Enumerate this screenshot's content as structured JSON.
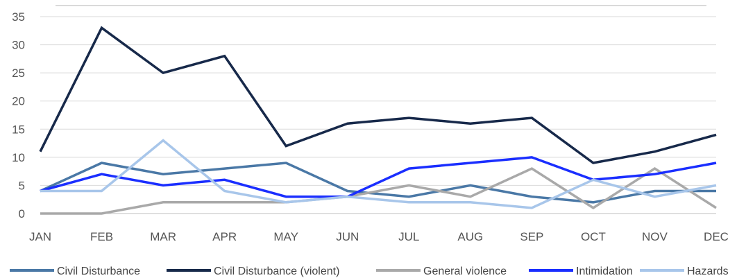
{
  "chart_data": {
    "type": "line",
    "categories": [
      "JAN",
      "FEB",
      "MAR",
      "APR",
      "MAY",
      "JUN",
      "JUL",
      "AUG",
      "SEP",
      "OCT",
      "NOV",
      "DEC"
    ],
    "ylim": [
      0,
      35
    ],
    "yticks": [
      0,
      5,
      10,
      15,
      20,
      25,
      30,
      35
    ],
    "grid": true,
    "legend_position": "bottom",
    "series": [
      {
        "name": "Civil Disturbance",
        "color": "#4a78a6",
        "values": [
          4,
          9,
          7,
          8,
          9,
          4,
          3,
          5,
          3,
          2,
          4,
          4
        ]
      },
      {
        "name": "Civil Disturbance (violent)",
        "color": "#17294a",
        "values": [
          11,
          33,
          25,
          28,
          12,
          16,
          17,
          16,
          17,
          9,
          11,
          14
        ]
      },
      {
        "name": "General violence",
        "color": "#a9a9a9",
        "values": [
          0,
          0,
          2,
          2,
          2,
          3,
          5,
          3,
          8,
          1,
          8,
          1
        ]
      },
      {
        "name": "Intimidation",
        "color": "#1a2eff",
        "values": [
          4,
          7,
          5,
          6,
          3,
          3,
          8,
          9,
          10,
          6,
          7,
          9
        ]
      },
      {
        "name": "Hazards",
        "color": "#a8c6ea",
        "values": [
          4,
          4,
          13,
          4,
          2,
          3,
          2,
          2,
          1,
          6,
          3,
          5
        ]
      }
    ]
  }
}
